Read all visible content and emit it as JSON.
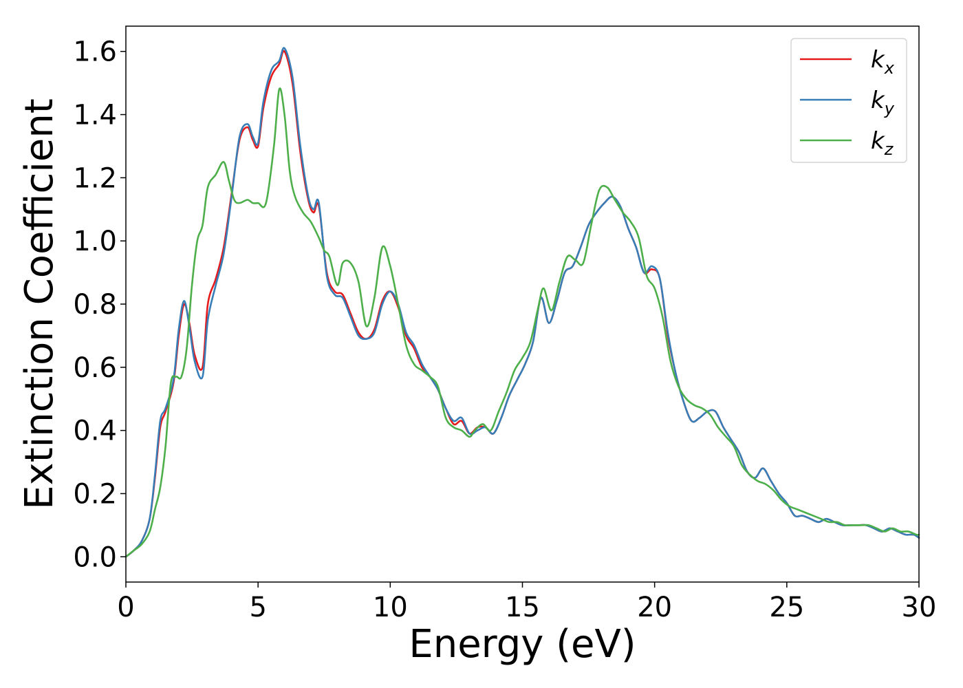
{
  "chart_data": {
    "type": "line",
    "xlabel": "Energy (eV)",
    "ylabel": "Extinction Coefficient",
    "xlim": [
      0,
      30
    ],
    "ylim": [
      -0.08,
      1.68
    ],
    "xticks": [
      0,
      5,
      10,
      15,
      20,
      25,
      30
    ],
    "yticks": [
      "0.0",
      "0.2",
      "0.4",
      "0.6",
      "0.8",
      "1.0",
      "1.2",
      "1.4",
      "1.6"
    ],
    "grid": false,
    "legend_position": "top-right",
    "series": [
      {
        "name": "k_x",
        "label_base": "k",
        "label_sub": "x",
        "color": "#e41a1c",
        "x": [
          0,
          0.3,
          0.6,
          0.9,
          1.1,
          1.3,
          1.5,
          1.8,
          2.0,
          2.2,
          2.4,
          2.6,
          2.9,
          3.1,
          3.4,
          3.7,
          4.0,
          4.3,
          4.6,
          4.8,
          5.0,
          5.2,
          5.5,
          5.8,
          6.0,
          6.3,
          6.6,
          6.9,
          7.1,
          7.3,
          7.6,
          7.9,
          8.2,
          8.5,
          8.8,
          9.1,
          9.4,
          9.7,
          10.0,
          10.3,
          10.6,
          10.9,
          11.2,
          11.5,
          11.8,
          12.1,
          12.4,
          12.7,
          13.0,
          13.3,
          13.6,
          13.9,
          14.2,
          14.5,
          14.8,
          15.1,
          15.4,
          15.7,
          16.0,
          16.3,
          16.6,
          16.9,
          17.2,
          17.5,
          17.8,
          18.1,
          18.4,
          18.7,
          19.0,
          19.3,
          19.6,
          19.9,
          20.2,
          20.5,
          20.8,
          21.1,
          21.4,
          21.7,
          22.0,
          22.3,
          22.6,
          22.9,
          23.2,
          23.5,
          23.8,
          24.1,
          24.4,
          24.7,
          25.0,
          25.3,
          25.6,
          25.9,
          26.2,
          26.5,
          26.8,
          27.1,
          27.4,
          27.7,
          28.0,
          28.3,
          28.6,
          28.9,
          29.2,
          29.5,
          29.8,
          30.0
        ],
        "y": [
          0.0,
          0.02,
          0.05,
          0.12,
          0.25,
          0.41,
          0.46,
          0.55,
          0.7,
          0.8,
          0.74,
          0.64,
          0.6,
          0.8,
          0.88,
          0.98,
          1.15,
          1.32,
          1.36,
          1.32,
          1.3,
          1.42,
          1.52,
          1.56,
          1.6,
          1.5,
          1.28,
          1.13,
          1.09,
          1.11,
          0.9,
          0.84,
          0.83,
          0.77,
          0.71,
          0.69,
          0.72,
          0.81,
          0.84,
          0.79,
          0.7,
          0.66,
          0.6,
          0.57,
          0.53,
          0.47,
          0.42,
          0.43,
          0.39,
          0.41,
          0.41,
          0.39,
          0.44,
          0.51,
          0.56,
          0.61,
          0.68,
          0.82,
          0.74,
          0.81,
          0.9,
          0.92,
          0.98,
          1.05,
          1.09,
          1.12,
          1.14,
          1.11,
          1.04,
          0.98,
          0.9,
          0.91,
          0.88,
          0.7,
          0.58,
          0.49,
          0.43,
          0.44,
          0.46,
          0.46,
          0.41,
          0.37,
          0.33,
          0.27,
          0.25,
          0.28,
          0.24,
          0.2,
          0.17,
          0.13,
          0.13,
          0.12,
          0.11,
          0.12,
          0.11,
          0.1,
          0.1,
          0.1,
          0.1,
          0.09,
          0.08,
          0.09,
          0.08,
          0.07,
          0.07,
          0.06
        ]
      },
      {
        "name": "k_y",
        "label_base": "k",
        "label_sub": "y",
        "color": "#377eb8",
        "x": [
          0,
          0.3,
          0.6,
          0.9,
          1.1,
          1.3,
          1.5,
          1.8,
          2.0,
          2.2,
          2.4,
          2.6,
          2.9,
          3.1,
          3.4,
          3.7,
          4.0,
          4.3,
          4.6,
          4.8,
          5.0,
          5.2,
          5.5,
          5.8,
          6.0,
          6.3,
          6.6,
          6.9,
          7.1,
          7.3,
          7.6,
          7.9,
          8.2,
          8.5,
          8.8,
          9.1,
          9.4,
          9.7,
          10.0,
          10.3,
          10.6,
          10.9,
          11.2,
          11.5,
          11.8,
          12.1,
          12.4,
          12.7,
          13.0,
          13.3,
          13.6,
          13.9,
          14.2,
          14.5,
          14.8,
          15.1,
          15.4,
          15.7,
          16.0,
          16.3,
          16.6,
          16.9,
          17.2,
          17.5,
          17.8,
          18.1,
          18.4,
          18.7,
          19.0,
          19.3,
          19.6,
          19.9,
          20.2,
          20.5,
          20.8,
          21.1,
          21.4,
          21.7,
          22.0,
          22.3,
          22.6,
          22.9,
          23.2,
          23.5,
          23.8,
          24.1,
          24.4,
          24.7,
          25.0,
          25.3,
          25.6,
          25.9,
          26.2,
          26.5,
          26.8,
          27.1,
          27.4,
          27.7,
          28.0,
          28.3,
          28.6,
          28.9,
          29.2,
          29.5,
          29.8,
          30.0
        ],
        "y": [
          0.0,
          0.02,
          0.05,
          0.12,
          0.26,
          0.43,
          0.47,
          0.56,
          0.72,
          0.81,
          0.73,
          0.62,
          0.57,
          0.75,
          0.86,
          0.96,
          1.14,
          1.33,
          1.37,
          1.33,
          1.31,
          1.44,
          1.54,
          1.57,
          1.61,
          1.52,
          1.3,
          1.14,
          1.1,
          1.12,
          0.89,
          0.83,
          0.82,
          0.76,
          0.7,
          0.69,
          0.71,
          0.8,
          0.84,
          0.8,
          0.71,
          0.67,
          0.61,
          0.57,
          0.53,
          0.47,
          0.43,
          0.44,
          0.39,
          0.4,
          0.41,
          0.39,
          0.44,
          0.51,
          0.56,
          0.61,
          0.68,
          0.82,
          0.74,
          0.81,
          0.9,
          0.92,
          0.98,
          1.05,
          1.09,
          1.12,
          1.14,
          1.11,
          1.04,
          0.98,
          0.9,
          0.92,
          0.88,
          0.71,
          0.58,
          0.49,
          0.43,
          0.44,
          0.46,
          0.46,
          0.41,
          0.37,
          0.33,
          0.27,
          0.25,
          0.28,
          0.24,
          0.2,
          0.17,
          0.13,
          0.13,
          0.12,
          0.11,
          0.12,
          0.11,
          0.1,
          0.1,
          0.1,
          0.1,
          0.09,
          0.08,
          0.09,
          0.08,
          0.07,
          0.07,
          0.06
        ]
      },
      {
        "name": "k_z",
        "label_base": "k",
        "label_sub": "z",
        "color": "#4daf4a",
        "x": [
          0,
          0.3,
          0.6,
          0.9,
          1.1,
          1.3,
          1.5,
          1.7,
          1.9,
          2.1,
          2.3,
          2.5,
          2.7,
          2.9,
          3.1,
          3.4,
          3.7,
          3.9,
          4.1,
          4.3,
          4.6,
          4.8,
          5.0,
          5.3,
          5.6,
          5.8,
          6.0,
          6.2,
          6.4,
          6.7,
          7.0,
          7.3,
          7.5,
          7.7,
          8.0,
          8.2,
          8.5,
          8.8,
          9.1,
          9.4,
          9.7,
          10.0,
          10.3,
          10.6,
          10.9,
          11.2,
          11.5,
          11.8,
          12.1,
          12.4,
          12.7,
          13.0,
          13.2,
          13.5,
          13.8,
          14.1,
          14.4,
          14.7,
          15.0,
          15.3,
          15.6,
          15.8,
          16.1,
          16.4,
          16.7,
          17.0,
          17.3,
          17.6,
          17.9,
          18.2,
          18.5,
          18.8,
          19.1,
          19.4,
          19.7,
          20.0,
          20.3,
          20.6,
          20.9,
          21.2,
          21.5,
          21.8,
          22.1,
          22.4,
          22.7,
          23.0,
          23.3,
          23.6,
          23.9,
          24.2,
          24.5,
          24.8,
          25.1,
          25.4,
          25.7,
          26.0,
          26.3,
          26.6,
          26.9,
          27.2,
          27.5,
          27.8,
          28.1,
          28.4,
          28.7,
          29.0,
          29.3,
          29.6,
          29.9,
          30.0
        ],
        "y": [
          0.0,
          0.02,
          0.04,
          0.08,
          0.15,
          0.22,
          0.35,
          0.55,
          0.57,
          0.57,
          0.66,
          0.86,
          1.0,
          1.05,
          1.17,
          1.21,
          1.25,
          1.19,
          1.13,
          1.12,
          1.13,
          1.12,
          1.12,
          1.12,
          1.3,
          1.48,
          1.4,
          1.22,
          1.14,
          1.09,
          1.06,
          1.01,
          0.97,
          0.95,
          0.86,
          0.93,
          0.93,
          0.87,
          0.73,
          0.82,
          0.98,
          0.92,
          0.8,
          0.67,
          0.61,
          0.59,
          0.57,
          0.54,
          0.44,
          0.41,
          0.4,
          0.38,
          0.4,
          0.42,
          0.4,
          0.46,
          0.52,
          0.59,
          0.63,
          0.68,
          0.79,
          0.85,
          0.78,
          0.87,
          0.95,
          0.94,
          0.93,
          1.05,
          1.16,
          1.17,
          1.13,
          1.09,
          1.06,
          1.01,
          0.89,
          0.85,
          0.76,
          0.62,
          0.54,
          0.5,
          0.48,
          0.47,
          0.45,
          0.41,
          0.38,
          0.35,
          0.29,
          0.26,
          0.24,
          0.23,
          0.21,
          0.18,
          0.16,
          0.15,
          0.14,
          0.13,
          0.12,
          0.11,
          0.11,
          0.1,
          0.1,
          0.1,
          0.1,
          0.09,
          0.08,
          0.09,
          0.08,
          0.08,
          0.07,
          0.07
        ]
      }
    ]
  }
}
